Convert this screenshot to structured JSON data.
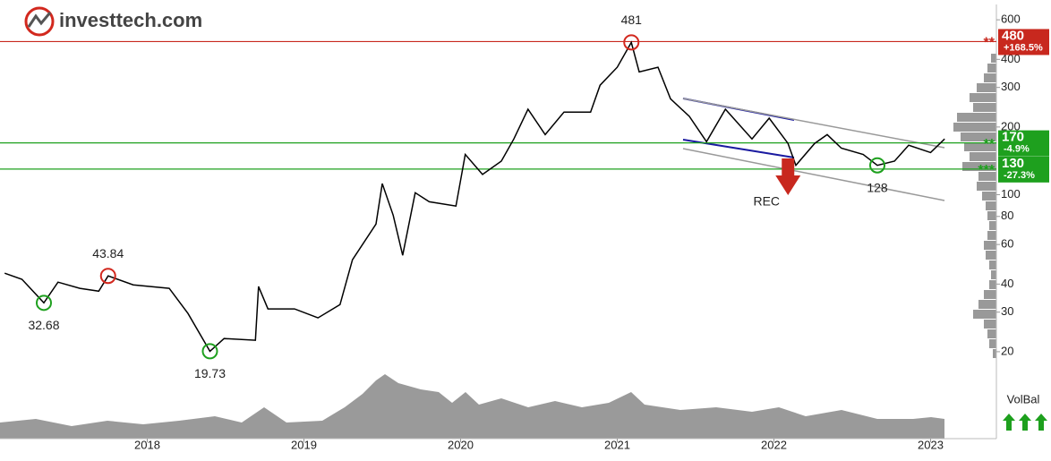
{
  "logo": "investtech.com",
  "chart_data": {
    "type": "line",
    "log": true,
    "color": "#000000",
    "x": [
      2017.09,
      2017.2,
      2017.34,
      2017.43,
      2017.57,
      2017.69,
      2017.75,
      2017.91,
      2018.14,
      2018.26,
      2018.4,
      2018.49,
      2018.69,
      2018.71,
      2018.77,
      2018.94,
      2019.09,
      2019.23,
      2019.31,
      2019.46,
      2019.5,
      2019.57,
      2019.63,
      2019.71,
      2019.8,
      2019.97,
      2020.03,
      2020.14,
      2020.26,
      2020.34,
      2020.43,
      2020.54,
      2020.66,
      2020.83,
      2020.89,
      2021.0,
      2021.09,
      2021.14,
      2021.26,
      2021.34,
      2021.46,
      2021.57,
      2021.69,
      2021.86,
      2021.97,
      2022.09,
      2022.14,
      2022.26,
      2022.34,
      2022.43,
      2022.57,
      2022.66,
      2022.77,
      2022.86,
      2023.0,
      2023.09
    ],
    "values": [
      44.7,
      42,
      33,
      40.8,
      38.3,
      37.2,
      43.5,
      39.7,
      38.3,
      29.6,
      20.1,
      22.9,
      22.5,
      39,
      31,
      31,
      28.3,
      32.4,
      51.3,
      74,
      112,
      81,
      53.7,
      102,
      93,
      89,
      151,
      123,
      141,
      177,
      240,
      185,
      233,
      233,
      307,
      369,
      476,
      352,
      369,
      267,
      223,
      172,
      240,
      177,
      219,
      169,
      135,
      169,
      185,
      161,
      151,
      135,
      141,
      166,
      154,
      177
    ],
    "xlim": [
      2017.06,
      2023.42
    ],
    "xticks": [
      2018,
      2019,
      2020,
      2021,
      2022,
      2023
    ],
    "ylim": [
      15.6,
      702
    ],
    "yticks": [
      20,
      30,
      40,
      60,
      80,
      100,
      200,
      300,
      400,
      600
    ],
    "levels": [
      {
        "value": 480,
        "change": "+168.5%",
        "stars": "**",
        "color": "#c8281e"
      },
      {
        "value": 170,
        "change": "-4.9%",
        "stars": "**",
        "color": "#1ea01e"
      },
      {
        "value": 130,
        "change": "-27.3%",
        "stars": "***",
        "color": "#1ea01e"
      }
    ],
    "annotations": [
      {
        "text": "481",
        "x": 2021.09,
        "y": 476,
        "color": "#d2281e"
      },
      {
        "text": "43.84",
        "x": 2017.75,
        "y": 43.5,
        "color": "#d2281e"
      },
      {
        "text": "32.68",
        "x": 2017.34,
        "y": 33,
        "color": "#1ea01e"
      },
      {
        "text": "19.73",
        "x": 2018.4,
        "y": 20.1,
        "color": "#1ea01e"
      },
      {
        "text": "128",
        "x": 2022.66,
        "y": 135,
        "color": "#1ea01e"
      }
    ],
    "signal": {
      "text": "REC",
      "x": 2022.09,
      "color": "#c8281e"
    },
    "volbal": "VolBal"
  }
}
